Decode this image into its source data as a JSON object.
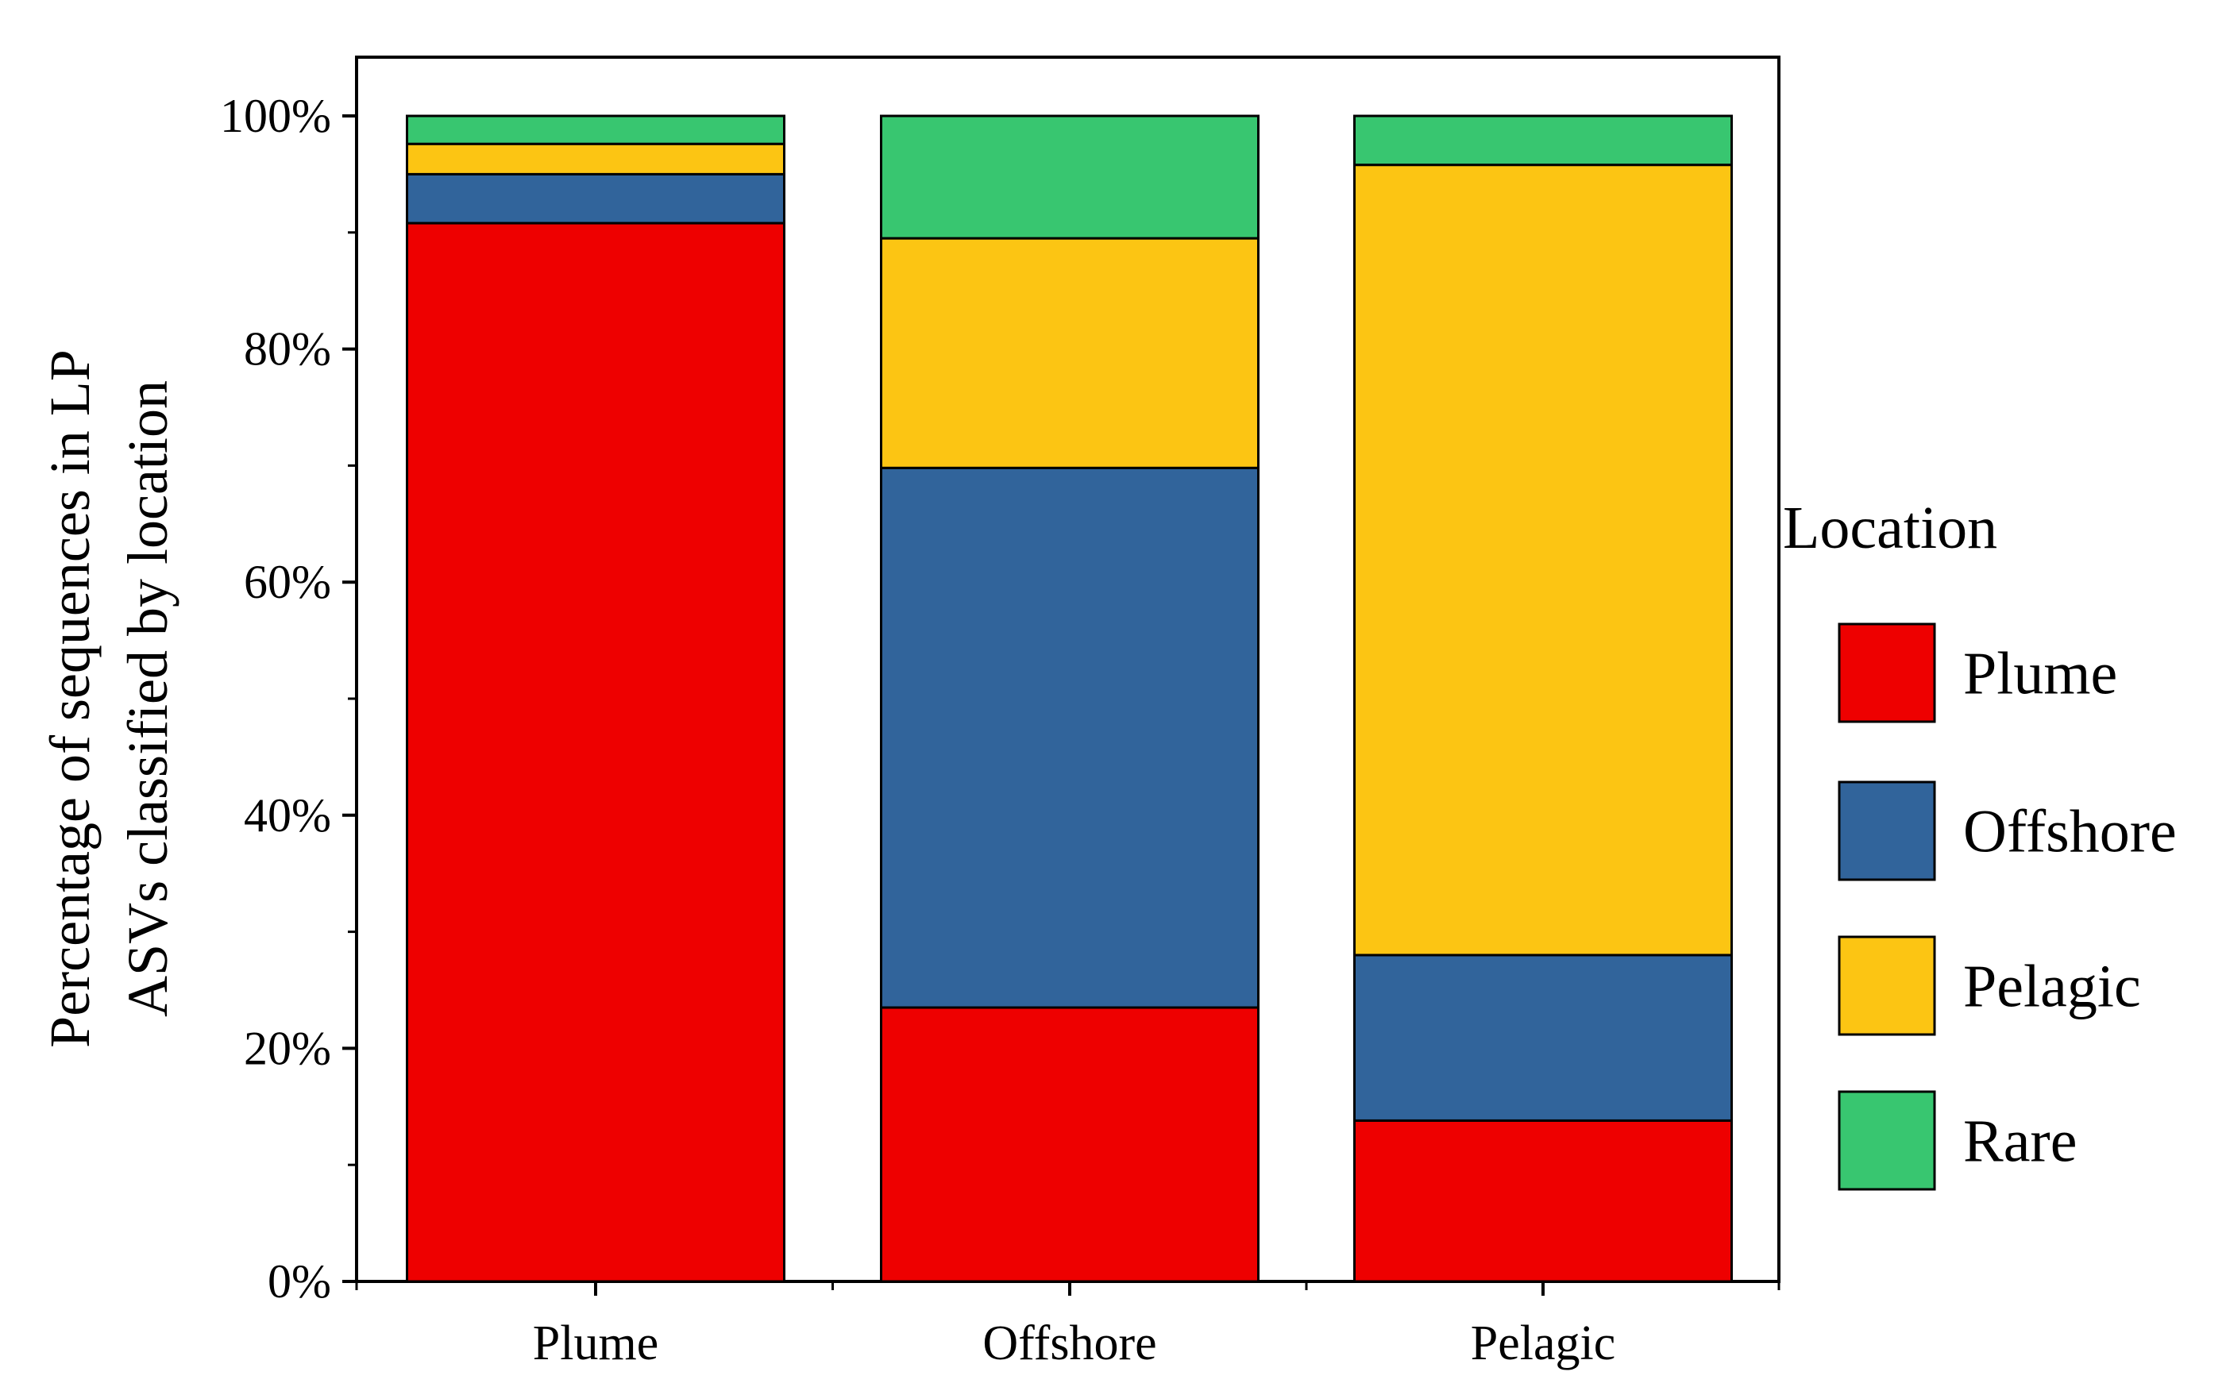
{
  "chart_data": {
    "type": "bar",
    "stacked": true,
    "title": "",
    "xlabel": "",
    "ylabel_lines": [
      "Percentage of sequences in LP",
      "ASVs classified by location"
    ],
    "categories": [
      "Plume",
      "Offshore",
      "Pelagic"
    ],
    "ylim": [
      0,
      100
    ],
    "yticks": [
      {
        "value": 0,
        "label": "0%"
      },
      {
        "value": 20,
        "label": "20%"
      },
      {
        "value": 40,
        "label": "40%"
      },
      {
        "value": 60,
        "label": "60%"
      },
      {
        "value": 80,
        "label": "80%"
      },
      {
        "value": 100,
        "label": "100%"
      }
    ],
    "yminor": [
      10,
      30,
      50,
      70,
      90
    ],
    "series": [
      {
        "name": "Plume",
        "color": "#ee0000",
        "values": [
          90.8,
          23.5,
          13.8
        ]
      },
      {
        "name": "Offshore",
        "color": "#31649b",
        "values": [
          4.2,
          46.3,
          14.2
        ]
      },
      {
        "name": "Pelagic",
        "color": "#fcc513",
        "values": [
          2.6,
          19.7,
          67.8
        ]
      },
      {
        "name": "Rare",
        "color": "#38c670",
        "values": [
          2.4,
          10.5,
          4.2
        ]
      }
    ],
    "legend": {
      "title": "Location",
      "placement": "right"
    },
    "grid": false
  }
}
